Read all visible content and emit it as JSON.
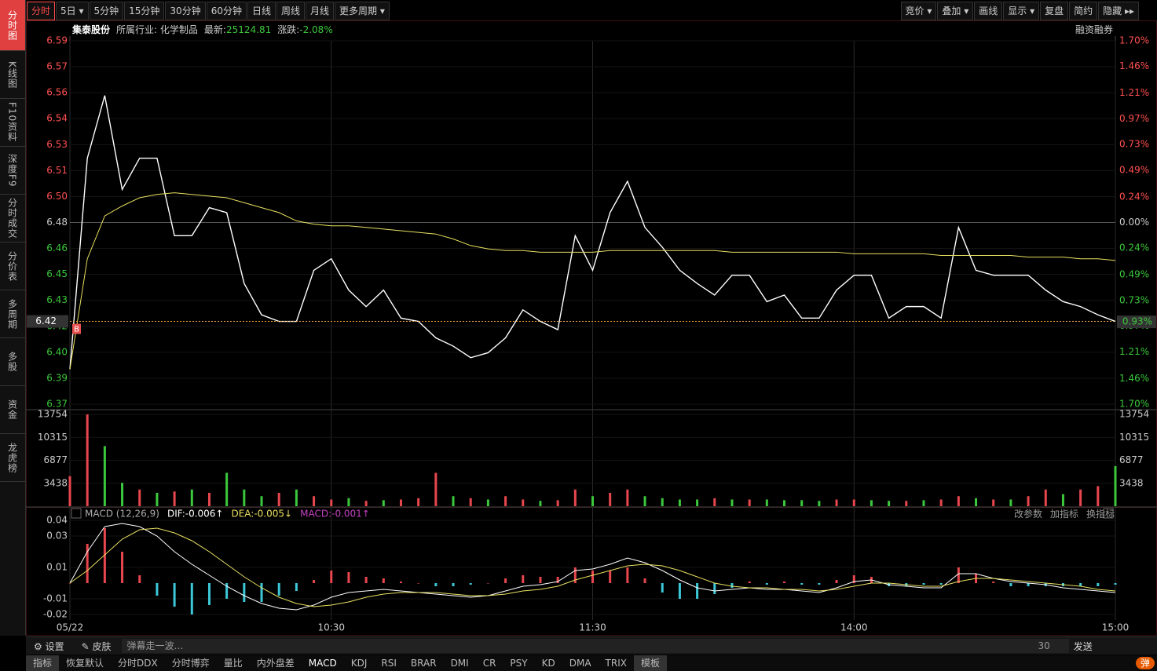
{
  "toolbar": {
    "left": [
      "分时",
      "5日 ▾",
      "5分钟",
      "15分钟",
      "30分钟",
      "60分钟",
      "日线",
      "周线",
      "月线",
      "更多周期 ▾"
    ],
    "right": [
      "竞价 ▾",
      "叠加 ▾",
      "画线",
      "显示 ▾",
      "复盘",
      "简约",
      "隐藏 ▸▸"
    ]
  },
  "sidebar": [
    "分时图",
    "K线图",
    "F10资料",
    "深度F9",
    "分时成交",
    "分价表",
    "多周期",
    "多股",
    "资金",
    "龙虎榜"
  ],
  "info": {
    "name": "集泰股份",
    "industry_label": "所属行业:",
    "industry": "化学制品",
    "latest_label": "最新:",
    "latest": "25124.81",
    "change_label": "涨跌:",
    "change": "-2.08%",
    "margin": "融资融券"
  },
  "price_chart": {
    "type": "line",
    "x": [
      0,
      4,
      8,
      12,
      16,
      20,
      24,
      28,
      32,
      36,
      40,
      44,
      48,
      52,
      56,
      60,
      64,
      68,
      72,
      76,
      80,
      84,
      88,
      92,
      96,
      100,
      104,
      108,
      112,
      116,
      120,
      124,
      128,
      132,
      136,
      140,
      144,
      148,
      152,
      156,
      160,
      164,
      168,
      172,
      176,
      180,
      184,
      188,
      192,
      196,
      200,
      204,
      208,
      212,
      216,
      220,
      224,
      228,
      232,
      236,
      240
    ],
    "xlim": [
      0,
      240
    ],
    "series": [
      {
        "color": "#ffffff",
        "values": [
          6.391,
          6.519,
          6.557,
          6.5,
          6.519,
          6.519,
          6.472,
          6.472,
          6.489,
          6.486,
          6.443,
          6.424,
          6.42,
          6.42,
          6.451,
          6.458,
          6.439,
          6.429,
          6.439,
          6.422,
          6.42,
          6.41,
          6.405,
          6.398,
          6.401,
          6.41,
          6.427,
          6.42,
          6.415,
          6.472,
          6.451,
          6.486,
          6.505,
          6.477,
          6.465,
          6.451,
          6.443,
          6.436,
          6.448,
          6.448,
          6.432,
          6.436,
          6.422,
          6.422,
          6.439,
          6.448,
          6.448,
          6.422,
          6.429,
          6.429,
          6.422,
          6.477,
          6.451,
          6.448,
          6.448,
          6.448,
          6.439,
          6.432,
          6.429,
          6.424,
          6.42
        ]
      },
      {
        "color": "#e8e060",
        "values": [
          6.391,
          6.458,
          6.484,
          6.49,
          6.495,
          6.497,
          6.498,
          6.497,
          6.496,
          6.495,
          6.492,
          6.489,
          6.486,
          6.481,
          6.479,
          6.478,
          6.478,
          6.477,
          6.476,
          6.475,
          6.474,
          6.473,
          6.47,
          6.466,
          6.464,
          6.463,
          6.463,
          6.462,
          6.462,
          6.462,
          6.462,
          6.463,
          6.463,
          6.463,
          6.463,
          6.463,
          6.463,
          6.463,
          6.462,
          6.462,
          6.462,
          6.462,
          6.462,
          6.462,
          6.462,
          6.461,
          6.461,
          6.461,
          6.461,
          6.461,
          6.46,
          6.46,
          6.46,
          6.46,
          6.46,
          6.459,
          6.459,
          6.459,
          6.458,
          6.458,
          6.457
        ]
      }
    ],
    "ylim": [
      6.3698,
      6.5902
    ],
    "yticks": [
      {
        "value": 6.5902,
        "label": "6.59"
      },
      {
        "value": 6.5745,
        "label": "6.57"
      },
      {
        "value": 6.5587,
        "label": "6.56"
      },
      {
        "value": 6.543,
        "label": "6.54"
      },
      {
        "value": 6.5272,
        "label": "6.53"
      },
      {
        "value": 6.5115,
        "label": "6.51"
      },
      {
        "value": 6.4957,
        "label": "6.50"
      },
      {
        "value": 6.48,
        "label": "6.48"
      },
      {
        "value": 6.4643,
        "label": "6.46"
      },
      {
        "value": 6.4485,
        "label": "6.45"
      },
      {
        "value": 6.4328,
        "label": "6.43"
      },
      {
        "value": 6.417,
        "label": "6.42"
      },
      {
        "value": 6.4013,
        "label": "6.40"
      },
      {
        "value": 6.3855,
        "label": "6.39"
      },
      {
        "value": 6.3698,
        "label": "6.37"
      }
    ],
    "y2lim": [
      -1.7,
      1.7
    ],
    "y2ticks": [
      {
        "value": 1.7,
        "label": "1.70%"
      },
      {
        "value": 1.46,
        "label": "1.46%"
      },
      {
        "value": 1.21,
        "label": "1.21%"
      },
      {
        "value": 0.97,
        "label": "0.97%"
      },
      {
        "value": 0.73,
        "label": "0.73%"
      },
      {
        "value": 0.49,
        "label": "0.49%"
      },
      {
        "value": 0.24,
        "label": "0.24%"
      },
      {
        "value": 0,
        "label": "0.00%"
      },
      {
        "value": -0.24,
        "label": "0.24%"
      },
      {
        "value": -0.49,
        "label": "0.49%"
      },
      {
        "value": -0.73,
        "label": "0.73%"
      },
      {
        "value": -0.97,
        "label": "0.97%"
      },
      {
        "value": -1.21,
        "label": "1.21%"
      },
      {
        "value": -1.46,
        "label": "1.46%"
      },
      {
        "value": -1.7,
        "label": "1.70%"
      }
    ],
    "current": {
      "value": 6.42,
      "label": "6.42"
    },
    "current_pct": {
      "value": -0.93,
      "label": "0.93%"
    },
    "marker": "B"
  },
  "volume_chart": {
    "type": "bar",
    "values": [
      4500,
      13754,
      9000,
      3500,
      2500,
      2000,
      2200,
      2500,
      2000,
      5000,
      2500,
      1500,
      2000,
      2500,
      1500,
      1000,
      1200,
      800,
      900,
      1000,
      1200,
      5000,
      1500,
      1200,
      1000,
      1500,
      1000,
      800,
      900,
      2500,
      1500,
      2000,
      2500,
      1500,
      1200,
      1000,
      1000,
      1200,
      1000,
      1000,
      1000,
      900,
      900,
      800,
      1000,
      1000,
      900,
      800,
      800,
      900,
      1000,
      1500,
      1200,
      1000,
      1000,
      1500,
      2500,
      1800,
      2500,
      3000,
      6000
    ],
    "colors": [
      "#e8474e",
      "#e8474e",
      "#3cc83c",
      "#3cc83c",
      "#e8474e",
      "#3cc83c",
      "#e8474e",
      "#3cc83c",
      "#e8474e",
      "#3cc83c",
      "#3cc83c",
      "#3cc83c",
      "#e8474e",
      "#3cc83c",
      "#e8474e",
      "#e8474e",
      "#3cc83c",
      "#e8474e",
      "#3cc83c",
      "#e8474e",
      "#e8474e",
      "#e8474e",
      "#3cc83c",
      "#e8474e",
      "#3cc83c",
      "#e8474e",
      "#e8474e",
      "#3cc83c",
      "#e8474e",
      "#e8474e",
      "#3cc83c",
      "#e8474e",
      "#e8474e",
      "#3cc83c",
      "#3cc83c",
      "#3cc83c",
      "#3cc83c",
      "#e8474e",
      "#3cc83c",
      "#e8474e",
      "#3cc83c",
      "#3cc83c",
      "#3cc83c",
      "#3cc83c",
      "#e8474e",
      "#e8474e",
      "#3cc83c",
      "#3cc83c",
      "#e8474e",
      "#3cc83c",
      "#e8474e",
      "#e8474e",
      "#3cc83c",
      "#e8474e",
      "#3cc83c",
      "#e8474e",
      "#e8474e",
      "#3cc83c",
      "#e8474e",
      "#e8474e",
      "#3cc83c"
    ],
    "ylim": [
      0,
      13754
    ],
    "yticks": [
      3438,
      6877,
      10315,
      13754
    ]
  },
  "macd_chart": {
    "type": "macd",
    "legend": [
      "MACD (12,26,9)",
      "DIF:-0.006↑",
      "DEA:-0.005↓",
      "MACD:-0.001↑"
    ],
    "legend_colors": [
      "#aaaaaa",
      "#ffffff",
      "#e8e060",
      "#c040c0"
    ],
    "buttons": [
      "改参数",
      "加指标",
      "换指标"
    ],
    "series": [
      {
        "color": "#ffffff",
        "values": [
          0,
          0.02,
          0.036,
          0.038,
          0.036,
          0.03,
          0.02,
          0.012,
          0.005,
          -0.002,
          -0.008,
          -0.013,
          -0.016,
          -0.017,
          -0.014,
          -0.009,
          -0.006,
          -0.005,
          -0.004,
          -0.005,
          -0.006,
          -0.007,
          -0.008,
          -0.009,
          -0.008,
          -0.005,
          -0.002,
          -0.001,
          0.001,
          0.008,
          0.009,
          0.012,
          0.016,
          0.013,
          0.008,
          0.002,
          -0.003,
          -0.005,
          -0.004,
          -0.003,
          -0.004,
          -0.004,
          -0.005,
          -0.006,
          -0.003,
          0.001,
          0.002,
          -0.001,
          -0.002,
          -0.003,
          -0.003,
          0.006,
          0.006,
          0.003,
          0.001,
          0,
          -0.001,
          -0.003,
          -0.004,
          -0.005,
          -0.006
        ]
      },
      {
        "color": "#e8e060",
        "values": [
          0,
          0.008,
          0.018,
          0.028,
          0.034,
          0.035,
          0.032,
          0.027,
          0.02,
          0.012,
          0.004,
          -0.003,
          -0.009,
          -0.013,
          -0.015,
          -0.014,
          -0.012,
          -0.009,
          -0.007,
          -0.006,
          -0.006,
          -0.006,
          -0.007,
          -0.008,
          -0.008,
          -0.007,
          -0.005,
          -0.004,
          -0.002,
          0.002,
          0.005,
          0.008,
          0.011,
          0.012,
          0.011,
          0.008,
          0.004,
          0,
          -0.002,
          -0.003,
          -0.003,
          -0.004,
          -0.004,
          -0.005,
          -0.004,
          -0.002,
          0,
          0,
          -0.001,
          -0.002,
          -0.002,
          0.001,
          0.003,
          0.003,
          0.002,
          0.001,
          0,
          -0.001,
          -0.002,
          -0.004,
          -0.005
        ]
      }
    ],
    "histogram": {
      "up_color": "#e8474e",
      "down_color": "#3cc8d8",
      "values": [
        0,
        0.025,
        0.035,
        0.02,
        0.005,
        -0.008,
        -0.015,
        -0.02,
        -0.014,
        -0.01,
        -0.012,
        -0.012,
        -0.008,
        -0.005,
        0.002,
        0.008,
        0.007,
        0.004,
        0.003,
        0.001,
        0,
        -0.002,
        -0.002,
        -0.001,
        0,
        0.003,
        0.005,
        0.004,
        0.004,
        0.01,
        0.008,
        0.008,
        0.01,
        0.003,
        -0.006,
        -0.01,
        -0.01,
        -0.007,
        -0.003,
        0.001,
        -0.001,
        0.001,
        -0.001,
        -0.001,
        0.002,
        0.005,
        0.004,
        -0.002,
        -0.002,
        -0.001,
        -0.001,
        0.01,
        0.006,
        0.001,
        -0.002,
        -0.002,
        -0.002,
        -0.002,
        -0.002,
        -0.002,
        -0.001
      ]
    },
    "ylim": [
      -0.02,
      0.04
    ],
    "yticks": [
      0.04,
      0.03,
      0.01,
      -0.01,
      -0.02
    ]
  },
  "xticks": [
    {
      "value": 0,
      "label": "05/22"
    },
    {
      "value": 60,
      "label": "10:30"
    },
    {
      "value": 120,
      "label": "11:30"
    },
    {
      "value": 180,
      "label": "14:00"
    },
    {
      "value": 240,
      "label": "15:00"
    }
  ],
  "footer": {
    "settings": "设置",
    "skin": "皮肤",
    "danmaku": "弹幕走一波…",
    "count": "30",
    "send": "发送",
    "danmu": "弹"
  },
  "indicator_tabs": [
    "指标",
    "恢复默认",
    "分时DDX",
    "分时博弈",
    "量比",
    "内外盘差",
    "MACD",
    "KDJ",
    "RSI",
    "BRAR",
    "DMI",
    "CR",
    "PSY",
    "KD",
    "DMA",
    "TRIX",
    "模板"
  ]
}
